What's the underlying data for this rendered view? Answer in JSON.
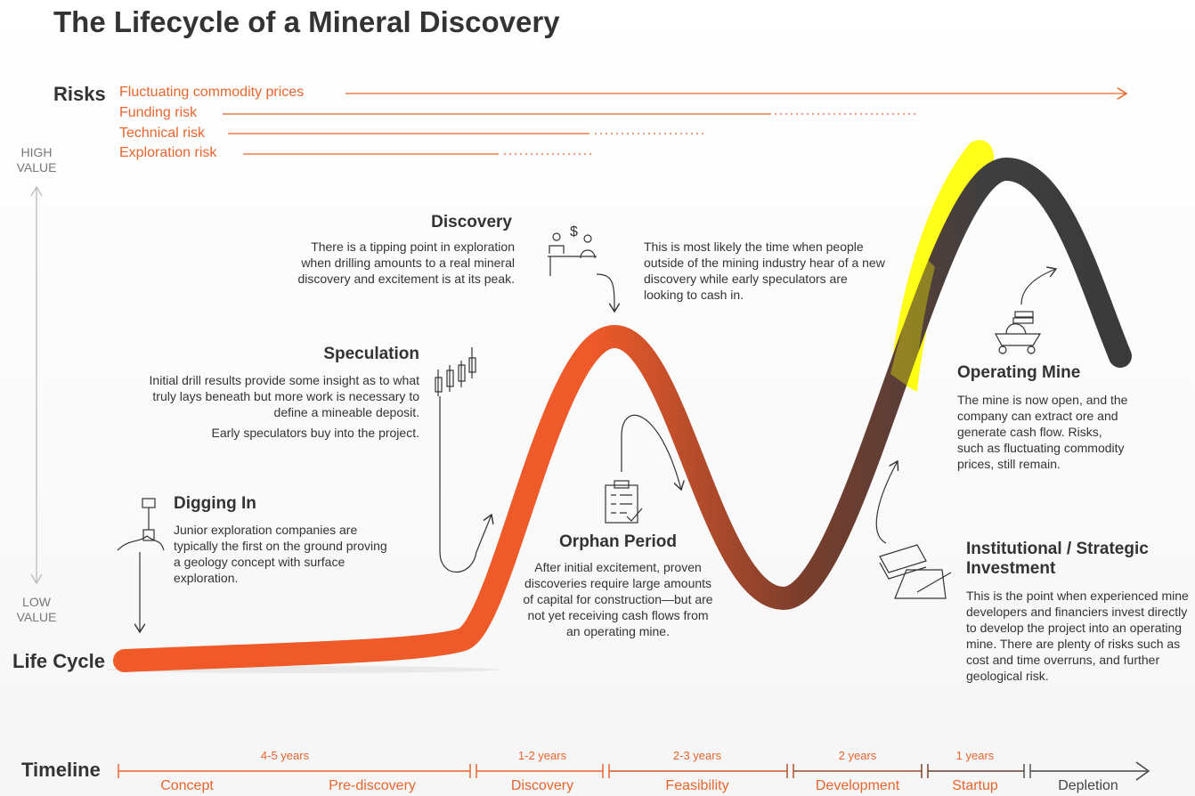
{
  "title": "The Lifecycle of a Mineral Discovery",
  "risks": {
    "label": "Risks",
    "items": [
      "Fluctuating commodity prices",
      "Funding risk",
      "Technical risk",
      "Exploration risk"
    ]
  },
  "value_axis": {
    "high": "HIGH VALUE",
    "low": "LOW VALUE"
  },
  "lifecycle_label": "Life Cycle",
  "stages": [
    {
      "title": "Digging In",
      "paragraphs": [
        "Junior exploration companies are typically the first on the ground proving a geology concept with surface exploration."
      ]
    },
    {
      "title": "Speculation",
      "paragraphs": [
        "Initial drill results provide some insight as to what truly lays beneath but more work is necessary to define a mineable deposit.",
        "Early speculators buy into the project."
      ]
    },
    {
      "title": "Discovery",
      "paragraphs": [
        "There is a tipping point in exploration when drilling amounts to a real mineral discovery and excitement is at its peak.",
        "This is most likely the time when people outside of the mining industry hear of a new discovery while early speculators are looking to cash in."
      ]
    },
    {
      "title": "Orphan Period",
      "paragraphs": [
        "After initial excitement, proven discoveries require large amounts of capital for construction—but are not yet receiving cash flows from an operating mine."
      ]
    },
    {
      "title": "Operating Mine",
      "paragraphs": [
        "The mine is now open, and the company can extract ore and generate cash flow. Risks, such as fluctuating commodity prices, still remain."
      ]
    },
    {
      "title": "Institutional / Strategic Investment",
      "paragraphs": [
        "This is the point when experienced mine developers and financiers invest directly to develop the project into an operating mine. There are plenty of risks such as cost and time overruns, and further geological risk."
      ]
    }
  ],
  "timeline": {
    "label": "Timeline",
    "durations": [
      "4-5 years",
      "1-2 years",
      "2-3 years",
      "2 years",
      "1 years"
    ],
    "phases": [
      "Concept",
      "Pre-discovery",
      "Discovery",
      "Feasibility",
      "Development",
      "Startup",
      "Depletion"
    ]
  }
}
